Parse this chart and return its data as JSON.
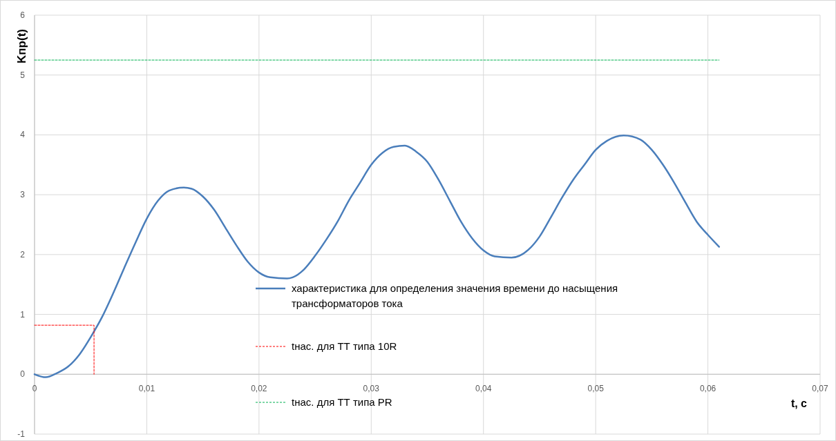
{
  "chart_data": {
    "type": "line",
    "xlabel": "t, c",
    "ylabel": "Kпр(t)",
    "xlim": [
      0,
      0.07
    ],
    "ylim": [
      -1,
      6
    ],
    "xticks": [
      0,
      {
        "value": 0.01,
        "label": "0,01"
      },
      {
        "value": 0.02,
        "label": "0,02"
      },
      {
        "value": 0.03,
        "label": "0,03"
      },
      {
        "value": 0.04,
        "label": "0,04"
      },
      {
        "value": 0.05,
        "label": "0,05"
      },
      {
        "value": 0.06,
        "label": "0,06"
      },
      {
        "value": 0.07,
        "label": "0,07"
      }
    ],
    "yticks": [
      -1,
      0,
      1,
      2,
      3,
      4,
      5,
      6
    ],
    "grid": true,
    "legend": "center",
    "marker": "none",
    "series": [
      {
        "name": "характеристика для определения значения времени  до насыщения трансформаторов тока",
        "color": "#4a7ebb",
        "line_style": "solid",
        "x": [
          0,
          0.001,
          0.002,
          0.003,
          0.004,
          0.005,
          0.006,
          0.007,
          0.008,
          0.009,
          0.01,
          0.011,
          0.012,
          0.0133,
          0.014,
          0.015,
          0.016,
          0.017,
          0.018,
          0.019,
          0.02,
          0.021,
          0.0225,
          0.023,
          0.024,
          0.025,
          0.026,
          0.027,
          0.028,
          0.029,
          0.03,
          0.031,
          0.032,
          0.033,
          0.034,
          0.035,
          0.036,
          0.037,
          0.038,
          0.039,
          0.04,
          0.041,
          0.0425,
          0.044,
          0.045,
          0.046,
          0.047,
          0.048,
          0.049,
          0.05,
          0.051,
          0.0525,
          0.054,
          0.055,
          0.056,
          0.057,
          0.058,
          0.059,
          0.06,
          0.061
        ],
        "values": [
          0,
          -0.05,
          0.02,
          0.13,
          0.33,
          0.62,
          0.95,
          1.35,
          1.78,
          2.2,
          2.6,
          2.9,
          3.07,
          3.12,
          3.1,
          2.97,
          2.75,
          2.45,
          2.15,
          1.88,
          1.7,
          1.62,
          1.6,
          1.62,
          1.75,
          1.98,
          2.25,
          2.55,
          2.9,
          3.2,
          3.5,
          3.7,
          3.8,
          3.82,
          3.72,
          3.55,
          3.25,
          2.9,
          2.55,
          2.27,
          2.07,
          1.97,
          1.95,
          2.08,
          2.3,
          2.62,
          2.95,
          3.25,
          3.5,
          3.75,
          3.9,
          3.99,
          3.92,
          3.75,
          3.5,
          3.2,
          2.87,
          2.55,
          2.33,
          2.13
        ]
      },
      {
        "name": "tнас. для ТТ типа 10R",
        "color": "#ff0000",
        "line_style": "dashed",
        "x": [
          0,
          0.0053,
          0.0053
        ],
        "values": [
          0.82,
          0.82,
          0
        ]
      },
      {
        "name": "tнас. для ТТ типа PR",
        "color": "#00b050",
        "line_style": "dashed",
        "x": [
          0,
          0.061
        ],
        "values": [
          5.25,
          5.25
        ]
      }
    ]
  }
}
